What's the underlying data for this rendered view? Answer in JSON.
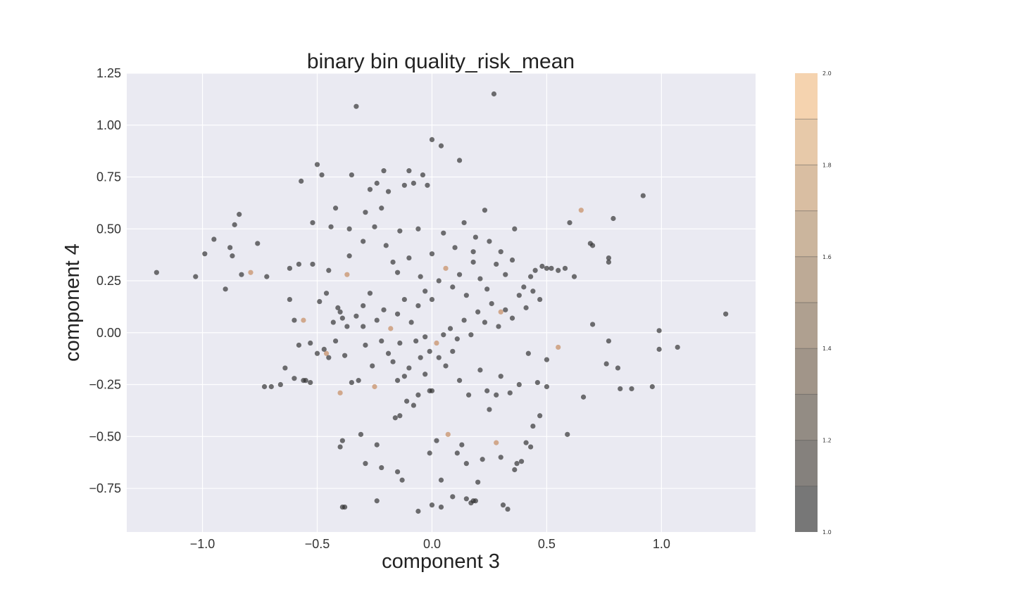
{
  "chart_data": {
    "type": "scatter",
    "title": "binary bin quality_risk_mean",
    "xlabel": "component 3",
    "ylabel": "component 4",
    "xlim": [
      -1.33,
      1.41
    ],
    "ylim": [
      -0.96,
      1.25
    ],
    "xticks": [
      -1.0,
      -0.5,
      0.0,
      0.5,
      1.0
    ],
    "xtick_labels": [
      "−1.0",
      "−0.5",
      "0.0",
      "0.5",
      "1.0"
    ],
    "yticks": [
      1.25,
      1.0,
      0.75,
      0.5,
      0.25,
      0.0,
      -0.25,
      -0.5,
      -0.75
    ],
    "ytick_labels": [
      "1.25",
      "1.00",
      "0.75",
      "0.50",
      "0.25",
      "0.00",
      "−0.25",
      "−0.50",
      "−0.75"
    ],
    "grid": true,
    "colorbar": {
      "min": 1.0,
      "max": 2.0,
      "ticks": [
        2.0,
        1.8,
        1.6,
        1.4,
        1.2,
        1.0
      ],
      "tick_labels": [
        "2.0",
        "1.8",
        "1.6",
        "1.4",
        "1.2",
        "1.0"
      ],
      "low_color": "#555555",
      "high_color": "#f2c89b"
    },
    "colors": {
      "background": "#eaeaf2",
      "low_point": "#2f2f2f",
      "high_point": "#c8916a"
    },
    "points": [
      [
        -1.2,
        0.29,
        1
      ],
      [
        -1.03,
        0.27,
        1
      ],
      [
        -0.99,
        0.38,
        1
      ],
      [
        -0.95,
        0.45,
        1
      ],
      [
        -0.9,
        0.21,
        1
      ],
      [
        -0.88,
        0.41,
        1
      ],
      [
        -0.87,
        0.37,
        1
      ],
      [
        -0.86,
        0.52,
        1
      ],
      [
        -0.84,
        0.57,
        1
      ],
      [
        -0.83,
        0.28,
        1
      ],
      [
        -0.79,
        0.29,
        2
      ],
      [
        -0.76,
        0.43,
        1
      ],
      [
        -0.72,
        0.27,
        1
      ],
      [
        -0.7,
        -0.26,
        1
      ],
      [
        -0.73,
        -0.26,
        1
      ],
      [
        -0.66,
        -0.25,
        1
      ],
      [
        -0.64,
        -0.17,
        1
      ],
      [
        -0.62,
        0.31,
        1
      ],
      [
        -0.6,
        -0.22,
        1
      ],
      [
        -0.58,
        0.33,
        1
      ],
      [
        -0.57,
        0.73,
        1
      ],
      [
        -0.56,
        -0.23,
        1
      ],
      [
        -0.55,
        -0.23,
        1
      ],
      [
        -0.53,
        -0.24,
        1
      ],
      [
        -0.52,
        0.53,
        1
      ],
      [
        -0.5,
        0.81,
        1
      ],
      [
        -0.48,
        0.76,
        1
      ],
      [
        -0.46,
        -0.1,
        2
      ],
      [
        -0.45,
        0.3,
        1
      ],
      [
        -0.44,
        0.51,
        1
      ],
      [
        -0.42,
        0.6,
        1
      ],
      [
        -0.41,
        0.12,
        1
      ],
      [
        -0.4,
        -0.29,
        2
      ],
      [
        -0.39,
        0.07,
        1
      ],
      [
        -0.37,
        0.28,
        2
      ],
      [
        -0.36,
        0.5,
        1
      ],
      [
        -0.35,
        0.76,
        1
      ],
      [
        -0.33,
        1.09,
        1
      ],
      [
        -0.3,
        0.03,
        1
      ],
      [
        -0.29,
        0.58,
        1
      ],
      [
        -0.27,
        0.69,
        1
      ],
      [
        -0.25,
        -0.26,
        2
      ],
      [
        -0.24,
        0.72,
        1
      ],
      [
        -0.22,
        0.6,
        1
      ],
      [
        -0.21,
        0.78,
        1
      ],
      [
        -0.19,
        0.68,
        1
      ],
      [
        -0.17,
        0.34,
        1
      ],
      [
        -0.15,
        -0.23,
        1
      ],
      [
        -0.14,
        0.49,
        1
      ],
      [
        -0.12,
        0.71,
        1
      ],
      [
        -0.1,
        0.78,
        1
      ],
      [
        -0.08,
        0.72,
        1
      ],
      [
        -0.06,
        0.5,
        1
      ],
      [
        -0.04,
        0.76,
        1
      ],
      [
        -0.02,
        0.71,
        1
      ],
      [
        0.0,
        0.93,
        1
      ],
      [
        0.04,
        0.9,
        1
      ],
      [
        0.12,
        0.83,
        1
      ],
      [
        0.27,
        1.15,
        1
      ],
      [
        0.23,
        0.59,
        1
      ],
      [
        0.18,
        0.39,
        1
      ],
      [
        0.28,
        0.33,
        1
      ],
      [
        0.3,
        0.1,
        2
      ],
      [
        0.32,
        0.28,
        1
      ],
      [
        0.35,
        0.35,
        1
      ],
      [
        0.4,
        0.22,
        1
      ],
      [
        0.43,
        0.27,
        1
      ],
      [
        0.45,
        0.3,
        1
      ],
      [
        0.48,
        0.32,
        1
      ],
      [
        0.5,
        0.31,
        1
      ],
      [
        0.52,
        0.31,
        1
      ],
      [
        0.55,
        0.3,
        1
      ],
      [
        0.58,
        0.31,
        1
      ],
      [
        0.6,
        0.53,
        1
      ],
      [
        0.62,
        0.27,
        1
      ],
      [
        0.65,
        0.59,
        2
      ],
      [
        0.69,
        0.43,
        1
      ],
      [
        0.7,
        0.42,
        1
      ],
      [
        0.77,
        0.34,
        1
      ],
      [
        0.77,
        0.36,
        1
      ],
      [
        0.79,
        0.55,
        1
      ],
      [
        0.92,
        0.66,
        1
      ],
      [
        1.28,
        0.09,
        1
      ],
      [
        0.99,
        0.01,
        1
      ],
      [
        0.99,
        -0.08,
        1
      ],
      [
        1.07,
        -0.07,
        1
      ],
      [
        0.96,
        -0.26,
        1
      ],
      [
        0.87,
        -0.27,
        1
      ],
      [
        0.82,
        -0.27,
        1
      ],
      [
        0.81,
        -0.17,
        1
      ],
      [
        0.76,
        -0.15,
        1
      ],
      [
        0.77,
        -0.04,
        1
      ],
      [
        0.7,
        0.04,
        1
      ],
      [
        0.66,
        -0.31,
        1
      ],
      [
        0.59,
        -0.49,
        1
      ],
      [
        0.55,
        -0.07,
        2
      ],
      [
        0.5,
        -0.26,
        1
      ],
      [
        0.47,
        -0.4,
        1
      ],
      [
        0.44,
        -0.45,
        1
      ],
      [
        0.41,
        -0.53,
        1
      ],
      [
        0.37,
        -0.63,
        1
      ],
      [
        0.33,
        -0.85,
        1
      ],
      [
        0.31,
        -0.83,
        1
      ],
      [
        0.28,
        -0.53,
        2
      ],
      [
        0.25,
        -0.37,
        1
      ],
      [
        0.2,
        -0.72,
        1
      ],
      [
        0.19,
        -0.81,
        1
      ],
      [
        0.18,
        -0.81,
        1
      ],
      [
        0.17,
        -0.82,
        1
      ],
      [
        0.15,
        -0.8,
        1
      ],
      [
        0.09,
        -0.79,
        1
      ],
      [
        0.04,
        -0.84,
        1
      ],
      [
        0.0,
        -0.83,
        1
      ],
      [
        -0.06,
        -0.86,
        1
      ],
      [
        -0.24,
        -0.81,
        1
      ],
      [
        -0.38,
        -0.84,
        1
      ],
      [
        -0.39,
        -0.84,
        1
      ],
      [
        -0.29,
        -0.63,
        1
      ],
      [
        -0.22,
        -0.65,
        1
      ],
      [
        -0.15,
        -0.67,
        1
      ],
      [
        -0.13,
        -0.71,
        1
      ],
      [
        -0.01,
        -0.58,
        1
      ],
      [
        0.02,
        -0.52,
        1
      ],
      [
        0.04,
        -0.71,
        1
      ],
      [
        0.07,
        -0.49,
        2
      ],
      [
        0.11,
        -0.58,
        1
      ],
      [
        0.13,
        -0.54,
        1
      ],
      [
        0.15,
        -0.63,
        1
      ],
      [
        0.22,
        -0.61,
        1
      ],
      [
        0.3,
        -0.6,
        1
      ],
      [
        0.36,
        -0.66,
        1
      ],
      [
        0.39,
        -0.62,
        1
      ],
      [
        0.43,
        -0.55,
        1
      ],
      [
        -0.4,
        -0.55,
        1
      ],
      [
        -0.39,
        -0.52,
        1
      ],
      [
        -0.31,
        -0.49,
        1
      ],
      [
        -0.24,
        -0.54,
        1
      ],
      [
        -0.16,
        -0.41,
        1
      ],
      [
        -0.14,
        -0.4,
        1
      ],
      [
        -0.11,
        -0.33,
        1
      ],
      [
        -0.08,
        -0.35,
        1
      ],
      [
        -0.06,
        -0.3,
        1
      ],
      [
        -0.03,
        -0.2,
        1
      ],
      [
        -0.01,
        -0.28,
        1
      ],
      [
        0.0,
        -0.28,
        1
      ],
      [
        0.03,
        -0.12,
        1
      ],
      [
        0.06,
        -0.16,
        1
      ],
      [
        0.09,
        -0.09,
        1
      ],
      [
        0.12,
        -0.23,
        1
      ],
      [
        0.16,
        -0.3,
        1
      ],
      [
        0.21,
        -0.18,
        1
      ],
      [
        0.24,
        -0.28,
        1
      ],
      [
        0.28,
        -0.3,
        1
      ],
      [
        0.3,
        -0.21,
        1
      ],
      [
        0.34,
        -0.29,
        1
      ],
      [
        0.38,
        -0.25,
        1
      ],
      [
        0.42,
        -0.1,
        1
      ],
      [
        0.46,
        -0.24,
        1
      ],
      [
        0.5,
        -0.13,
        1
      ],
      [
        -0.5,
        -0.1,
        1
      ],
      [
        -0.47,
        -0.08,
        1
      ],
      [
        -0.45,
        -0.12,
        1
      ],
      [
        -0.42,
        -0.04,
        1
      ],
      [
        -0.38,
        -0.11,
        1
      ],
      [
        -0.35,
        -0.24,
        1
      ],
      [
        -0.32,
        -0.23,
        1
      ],
      [
        -0.29,
        -0.06,
        1
      ],
      [
        -0.26,
        -0.16,
        1
      ],
      [
        -0.22,
        -0.04,
        1
      ],
      [
        -0.19,
        -0.1,
        1
      ],
      [
        -0.17,
        -0.14,
        1
      ],
      [
        -0.14,
        -0.05,
        1
      ],
      [
        -0.12,
        -0.21,
        1
      ],
      [
        -0.1,
        -0.17,
        1
      ],
      [
        -0.07,
        -0.04,
        1
      ],
      [
        -0.05,
        -0.12,
        1
      ],
      [
        -0.03,
        -0.02,
        1
      ],
      [
        -0.01,
        -0.09,
        1
      ],
      [
        0.02,
        -0.05,
        2
      ],
      [
        0.05,
        -0.01,
        1
      ],
      [
        0.08,
        0.02,
        1
      ],
      [
        0.11,
        -0.03,
        1
      ],
      [
        0.14,
        0.06,
        1
      ],
      [
        0.17,
        -0.01,
        1
      ],
      [
        0.2,
        0.1,
        1
      ],
      [
        0.23,
        0.05,
        1
      ],
      [
        0.26,
        0.14,
        1
      ],
      [
        0.29,
        0.03,
        1
      ],
      [
        0.32,
        0.11,
        1
      ],
      [
        0.35,
        0.07,
        1
      ],
      [
        0.38,
        0.18,
        1
      ],
      [
        0.41,
        0.12,
        1
      ],
      [
        0.44,
        0.2,
        1
      ],
      [
        0.47,
        0.16,
        1
      ],
      [
        -0.52,
        0.33,
        1
      ],
      [
        -0.49,
        0.15,
        1
      ],
      [
        -0.46,
        0.19,
        1
      ],
      [
        -0.43,
        0.05,
        1
      ],
      [
        -0.4,
        0.1,
        1
      ],
      [
        -0.37,
        0.03,
        1
      ],
      [
        -0.33,
        0.08,
        1
      ],
      [
        -0.3,
        0.13,
        1
      ],
      [
        -0.27,
        0.19,
        1
      ],
      [
        -0.24,
        0.06,
        1
      ],
      [
        -0.21,
        0.11,
        1
      ],
      [
        -0.18,
        0.02,
        2
      ],
      [
        -0.15,
        0.09,
        1
      ],
      [
        -0.12,
        0.16,
        1
      ],
      [
        -0.09,
        0.05,
        1
      ],
      [
        -0.06,
        0.13,
        1
      ],
      [
        -0.03,
        0.2,
        1
      ],
      [
        0.0,
        0.16,
        1
      ],
      [
        0.03,
        0.25,
        1
      ],
      [
        0.06,
        0.31,
        2
      ],
      [
        0.09,
        0.22,
        1
      ],
      [
        0.12,
        0.28,
        1
      ],
      [
        0.15,
        0.18,
        1
      ],
      [
        0.18,
        0.34,
        1
      ],
      [
        0.21,
        0.26,
        1
      ],
      [
        0.24,
        0.21,
        1
      ],
      [
        -0.6,
        0.06,
        1
      ],
      [
        -0.56,
        0.06,
        2
      ],
      [
        -0.58,
        -0.06,
        1
      ],
      [
        -0.53,
        -0.05,
        1
      ],
      [
        -0.62,
        0.16,
        1
      ],
      [
        -0.36,
        0.37,
        1
      ],
      [
        -0.3,
        0.44,
        1
      ],
      [
        -0.25,
        0.51,
        1
      ],
      [
        -0.2,
        0.42,
        1
      ],
      [
        -0.15,
        0.29,
        1
      ],
      [
        -0.1,
        0.36,
        1
      ],
      [
        -0.05,
        0.27,
        1
      ],
      [
        0.0,
        0.38,
        1
      ],
      [
        0.05,
        0.48,
        1
      ],
      [
        0.1,
        0.41,
        1
      ],
      [
        0.14,
        0.53,
        1
      ],
      [
        0.19,
        0.46,
        1
      ],
      [
        0.25,
        0.44,
        1
      ],
      [
        0.3,
        0.39,
        1
      ],
      [
        0.36,
        0.5,
        1
      ]
    ]
  }
}
